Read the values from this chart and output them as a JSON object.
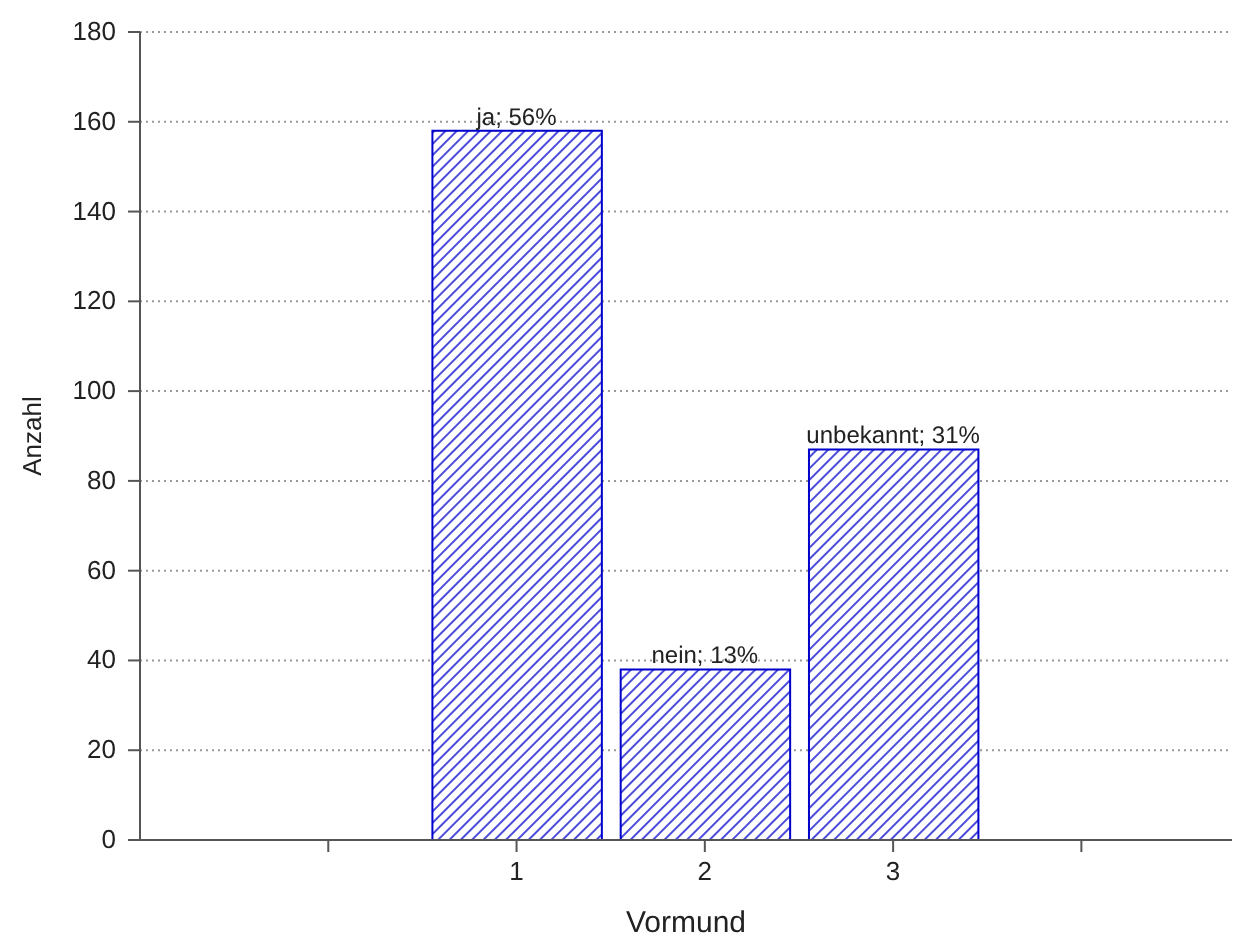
{
  "chart_data": {
    "type": "bar",
    "xlabel": "Vormund",
    "ylabel": "Anzahl",
    "x": [
      1,
      2,
      3
    ],
    "values": [
      158,
      38,
      87
    ],
    "color": "#0000cc",
    "annotations": [
      {
        "text": "ja; 56%",
        "x": 1,
        "y": 158
      },
      {
        "text": "nein; 13%",
        "x": 2,
        "y": 38
      },
      {
        "text": "unbekannt; 31%",
        "x": 3,
        "y": 87
      }
    ],
    "xlim": [
      -1,
      4.8
    ],
    "xticks": [
      {
        "value": 0,
        "label": null
      },
      1,
      2,
      3,
      {
        "value": 4,
        "label": null
      }
    ],
    "ylim": [
      0,
      180
    ],
    "yticks": [
      0,
      20,
      40,
      60,
      80,
      100,
      120,
      140,
      160,
      180
    ],
    "grid": "y"
  }
}
